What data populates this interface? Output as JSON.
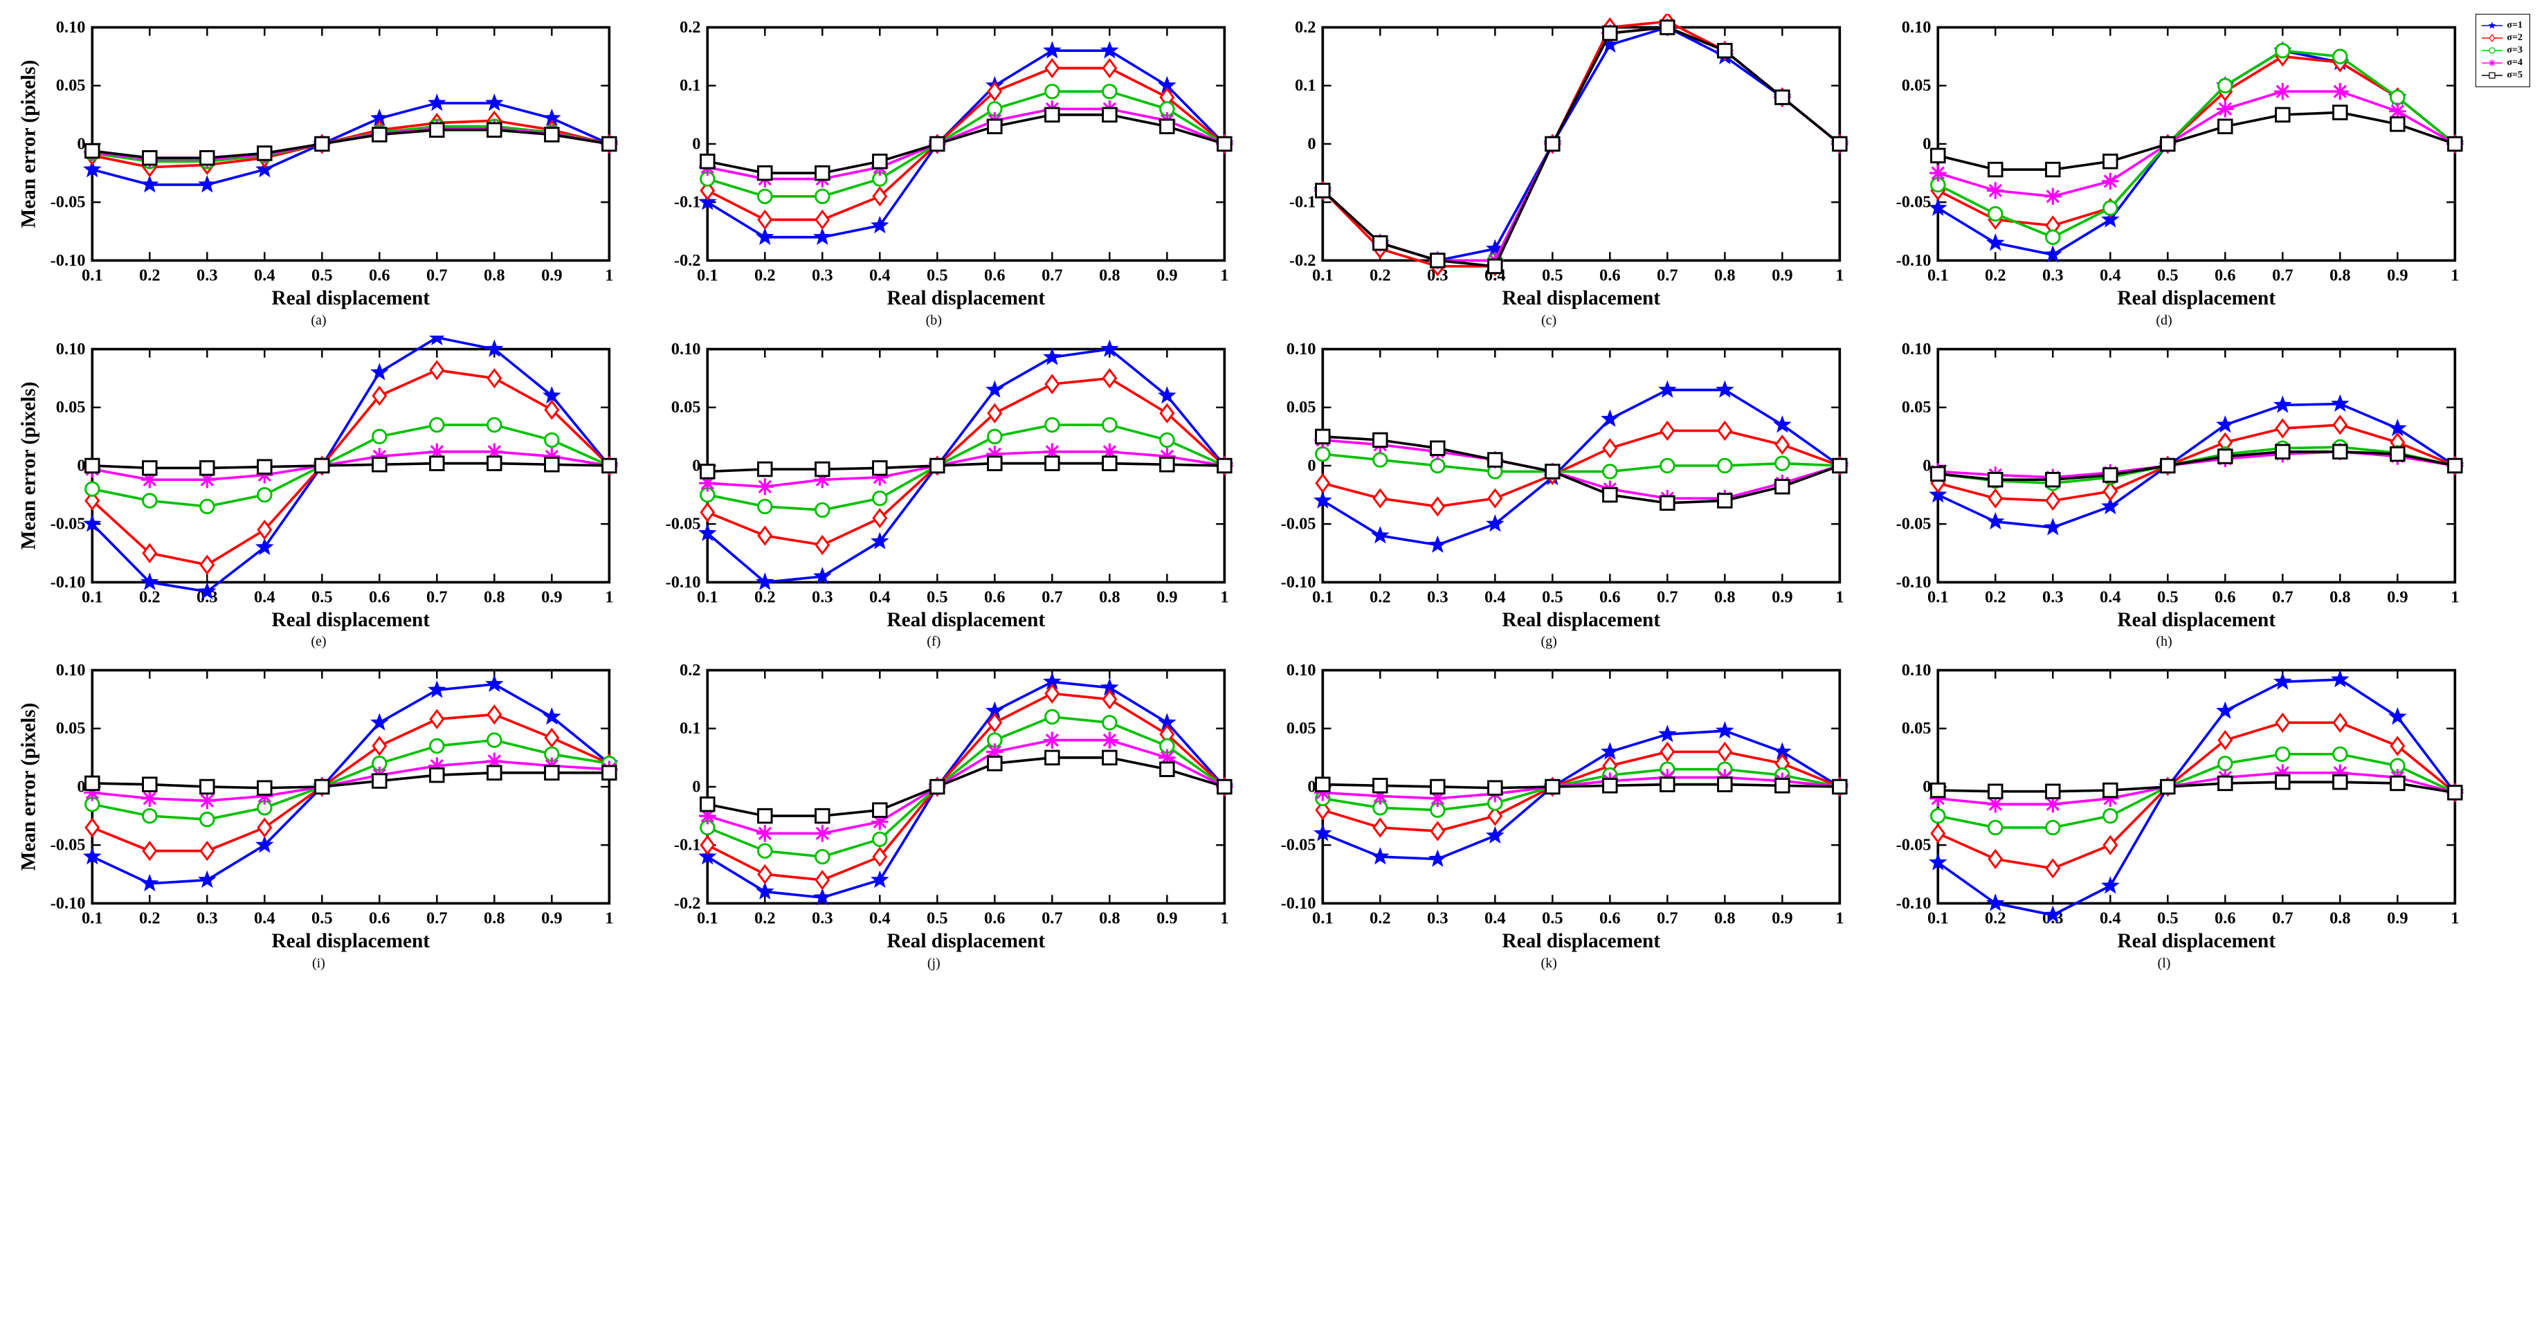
{
  "x_categories": [
    0.1,
    0.2,
    0.3,
    0.4,
    0.5,
    0.6,
    0.7,
    0.8,
    0.9,
    1.0
  ],
  "x_label": "Real displacement",
  "y_label": "Mean error (pixels)",
  "axis_color": "#000000",
  "background_color": "#ffffff",
  "axis_linewidth": 1.5,
  "tick_fontsize": 10,
  "label_fontsize": 12,
  "sublabel_fontsize": 20,
  "series_defs": {
    "s1": {
      "label": "σ=1",
      "color": "#0000ff",
      "marker": "pentagram",
      "ms": 5
    },
    "s2": {
      "label": "σ=2",
      "color": "#ff0000",
      "marker": "diamond",
      "ms": 5
    },
    "s3": {
      "label": "σ=3",
      "color": "#00c000",
      "marker": "circle",
      "ms": 5
    },
    "s4": {
      "label": "σ=4",
      "color": "#ff00ff",
      "marker": "asterisk",
      "ms": 5
    },
    "s5": {
      "label": "σ=5",
      "color": "#000000",
      "marker": "square",
      "ms": 5
    }
  },
  "legend_order": [
    "s1",
    "s2",
    "s3",
    "s4",
    "s5"
  ],
  "subplots": [
    {
      "id": "a",
      "ylim": [
        -0.1,
        0.1
      ],
      "ytick_step": 0.05,
      "series": {
        "s1": [
          -0.022,
          -0.035,
          -0.035,
          -0.022,
          0.0,
          0.022,
          0.035,
          0.035,
          0.022,
          0.0
        ],
        "s2": [
          -0.01,
          -0.02,
          -0.018,
          -0.012,
          0.0,
          0.012,
          0.018,
          0.02,
          0.012,
          0.0
        ],
        "s3": [
          -0.008,
          -0.015,
          -0.015,
          -0.01,
          0.0,
          0.01,
          0.015,
          0.015,
          0.01,
          0.0
        ],
        "s4": [
          -0.007,
          -0.013,
          -0.013,
          -0.009,
          0.0,
          0.009,
          0.013,
          0.013,
          0.009,
          0.0
        ],
        "s5": [
          -0.006,
          -0.012,
          -0.012,
          -0.008,
          0.0,
          0.008,
          0.012,
          0.012,
          0.008,
          0.0
        ]
      }
    },
    {
      "id": "b",
      "ylim": [
        -0.2,
        0.2
      ],
      "ytick_step": 0.1,
      "series": {
        "s1": [
          -0.1,
          -0.16,
          -0.16,
          -0.14,
          0.0,
          0.1,
          0.16,
          0.16,
          0.1,
          0.0
        ],
        "s2": [
          -0.08,
          -0.13,
          -0.13,
          -0.09,
          0.0,
          0.09,
          0.13,
          0.13,
          0.08,
          0.0
        ],
        "s3": [
          -0.06,
          -0.09,
          -0.09,
          -0.06,
          0.0,
          0.06,
          0.09,
          0.09,
          0.06,
          0.0
        ],
        "s4": [
          -0.04,
          -0.06,
          -0.06,
          -0.04,
          0.0,
          0.04,
          0.06,
          0.06,
          0.04,
          0.0
        ],
        "s5": [
          -0.03,
          -0.05,
          -0.05,
          -0.03,
          0.0,
          0.03,
          0.05,
          0.05,
          0.03,
          0.0
        ]
      }
    },
    {
      "id": "c",
      "ylim": [
        -0.2,
        0.2
      ],
      "ytick_step": 0.1,
      "series": {
        "s1": [
          -0.08,
          -0.17,
          -0.2,
          -0.18,
          0.0,
          0.17,
          0.2,
          0.15,
          0.08,
          0.0
        ],
        "s2": [
          -0.08,
          -0.18,
          -0.21,
          -0.21,
          0.0,
          0.2,
          0.21,
          0.16,
          0.08,
          0.0
        ],
        "s3": [
          -0.08,
          -0.17,
          -0.2,
          -0.2,
          0.0,
          0.19,
          0.2,
          0.16,
          0.08,
          0.0
        ],
        "s4": [
          -0.08,
          -0.17,
          -0.2,
          -0.2,
          0.0,
          0.19,
          0.2,
          0.16,
          0.08,
          0.0
        ],
        "s5": [
          -0.08,
          -0.17,
          -0.2,
          -0.21,
          0.0,
          0.19,
          0.2,
          0.16,
          0.08,
          0.0
        ]
      }
    },
    {
      "id": "d",
      "ylim": [
        -0.1,
        0.1
      ],
      "ytick_step": 0.05,
      "series": {
        "s1": [
          -0.055,
          -0.085,
          -0.095,
          -0.065,
          0.0,
          0.05,
          0.08,
          0.07,
          0.04,
          0.0
        ],
        "s2": [
          -0.04,
          -0.065,
          -0.07,
          -0.055,
          0.0,
          0.045,
          0.075,
          0.07,
          0.04,
          0.0
        ],
        "s3": [
          -0.035,
          -0.06,
          -0.08,
          -0.055,
          0.0,
          0.05,
          0.08,
          0.075,
          0.04,
          0.0
        ],
        "s4": [
          -0.025,
          -0.04,
          -0.045,
          -0.032,
          0.0,
          0.03,
          0.045,
          0.045,
          0.028,
          0.0
        ],
        "s5": [
          -0.01,
          -0.022,
          -0.022,
          -0.015,
          0.0,
          0.015,
          0.025,
          0.027,
          0.017,
          0.0
        ]
      }
    },
    {
      "id": "e",
      "ylim": [
        -0.1,
        0.1
      ],
      "ytick_step": 0.05,
      "series": {
        "s1": [
          -0.05,
          -0.1,
          -0.108,
          -0.07,
          0.0,
          0.08,
          0.11,
          0.1,
          0.06,
          0.0
        ],
        "s2": [
          -0.03,
          -0.075,
          -0.085,
          -0.055,
          0.0,
          0.06,
          0.082,
          0.075,
          0.048,
          0.0
        ],
        "s3": [
          -0.02,
          -0.03,
          -0.035,
          -0.025,
          0.0,
          0.025,
          0.035,
          0.035,
          0.022,
          0.0
        ],
        "s4": [
          -0.003,
          -0.012,
          -0.012,
          -0.008,
          0.0,
          0.008,
          0.012,
          0.012,
          0.008,
          0.0
        ],
        "s5": [
          0.0,
          -0.002,
          -0.002,
          -0.001,
          0.0,
          0.001,
          0.002,
          0.002,
          0.001,
          0.0
        ]
      }
    },
    {
      "id": "f",
      "ylim": [
        -0.1,
        0.1
      ],
      "ytick_step": 0.05,
      "series": {
        "s1": [
          -0.058,
          -0.1,
          -0.095,
          -0.065,
          0.0,
          0.065,
          0.093,
          0.1,
          0.06,
          0.0
        ],
        "s2": [
          -0.04,
          -0.06,
          -0.068,
          -0.045,
          0.0,
          0.045,
          0.07,
          0.075,
          0.045,
          0.0
        ],
        "s3": [
          -0.025,
          -0.035,
          -0.038,
          -0.028,
          0.0,
          0.025,
          0.035,
          0.035,
          0.022,
          0.0
        ],
        "s4": [
          -0.015,
          -0.018,
          -0.012,
          -0.01,
          0.0,
          0.01,
          0.012,
          0.012,
          0.008,
          0.0
        ],
        "s5": [
          -0.005,
          -0.003,
          -0.003,
          -0.002,
          0.0,
          0.002,
          0.002,
          0.002,
          0.001,
          0.0
        ]
      }
    },
    {
      "id": "g",
      "ylim": [
        -0.1,
        0.1
      ],
      "ytick_step": 0.05,
      "series": {
        "s1": [
          -0.03,
          -0.06,
          -0.068,
          -0.05,
          -0.01,
          0.04,
          0.065,
          0.065,
          0.035,
          0.0
        ],
        "s2": [
          -0.015,
          -0.028,
          -0.035,
          -0.028,
          -0.008,
          0.015,
          0.03,
          0.03,
          0.018,
          0.0
        ],
        "s3": [
          0.01,
          0.005,
          0.0,
          -0.005,
          -0.005,
          -0.005,
          0.0,
          0.0,
          0.002,
          0.0
        ],
        "s4": [
          0.022,
          0.018,
          0.012,
          0.005,
          -0.005,
          -0.02,
          -0.028,
          -0.028,
          -0.015,
          0.0
        ],
        "s5": [
          0.025,
          0.022,
          0.015,
          0.005,
          -0.005,
          -0.025,
          -0.032,
          -0.03,
          -0.018,
          0.0
        ]
      }
    },
    {
      "id": "h",
      "ylim": [
        -0.1,
        0.1
      ],
      "ytick_step": 0.05,
      "series": {
        "s1": [
          -0.025,
          -0.048,
          -0.053,
          -0.035,
          0.0,
          0.035,
          0.052,
          0.053,
          0.032,
          0.0
        ],
        "s2": [
          -0.015,
          -0.028,
          -0.03,
          -0.022,
          0.0,
          0.02,
          0.032,
          0.035,
          0.02,
          0.0
        ],
        "s3": [
          -0.007,
          -0.013,
          -0.015,
          -0.01,
          0.0,
          0.01,
          0.015,
          0.016,
          0.011,
          0.0
        ],
        "s4": [
          -0.005,
          -0.008,
          -0.01,
          -0.006,
          0.0,
          0.006,
          0.01,
          0.012,
          0.008,
          0.0
        ],
        "s5": [
          -0.007,
          -0.012,
          -0.012,
          -0.008,
          0.0,
          0.008,
          0.012,
          0.012,
          0.01,
          0.0
        ]
      }
    },
    {
      "id": "i",
      "ylim": [
        -0.1,
        0.1
      ],
      "ytick_step": 0.05,
      "series": {
        "s1": [
          -0.06,
          -0.083,
          -0.08,
          -0.05,
          0.0,
          0.055,
          0.083,
          0.088,
          0.06,
          0.02
        ],
        "s2": [
          -0.035,
          -0.055,
          -0.055,
          -0.035,
          0.0,
          0.035,
          0.058,
          0.062,
          0.042,
          0.02
        ],
        "s3": [
          -0.015,
          -0.025,
          -0.028,
          -0.018,
          0.0,
          0.02,
          0.035,
          0.04,
          0.028,
          0.02
        ],
        "s4": [
          -0.005,
          -0.01,
          -0.012,
          -0.008,
          0.0,
          0.01,
          0.018,
          0.022,
          0.018,
          0.015
        ],
        "s5": [
          0.003,
          0.002,
          0.0,
          -0.001,
          0.0,
          0.005,
          0.01,
          0.012,
          0.012,
          0.012
        ]
      }
    },
    {
      "id": "j",
      "ylim": [
        -0.2,
        0.2
      ],
      "ytick_step": 0.1,
      "series": {
        "s1": [
          -0.12,
          -0.18,
          -0.19,
          -0.16,
          0.0,
          0.13,
          0.18,
          0.17,
          0.11,
          0.0
        ],
        "s2": [
          -0.1,
          -0.15,
          -0.16,
          -0.12,
          0.0,
          0.11,
          0.16,
          0.15,
          0.09,
          0.0
        ],
        "s3": [
          -0.07,
          -0.11,
          -0.12,
          -0.09,
          0.0,
          0.08,
          0.12,
          0.11,
          0.07,
          0.0
        ],
        "s4": [
          -0.05,
          -0.08,
          -0.08,
          -0.06,
          0.0,
          0.06,
          0.08,
          0.08,
          0.05,
          0.0
        ],
        "s5": [
          -0.03,
          -0.05,
          -0.05,
          -0.04,
          0.0,
          0.04,
          0.05,
          0.05,
          0.03,
          0.0
        ]
      }
    },
    {
      "id": "k",
      "ylim": [
        -0.1,
        0.1
      ],
      "ytick_step": 0.05,
      "series": {
        "s1": [
          -0.04,
          -0.06,
          -0.062,
          -0.042,
          0.0,
          0.03,
          0.045,
          0.048,
          0.03,
          0.0
        ],
        "s2": [
          -0.02,
          -0.035,
          -0.038,
          -0.025,
          0.0,
          0.018,
          0.03,
          0.03,
          0.02,
          0.0
        ],
        "s3": [
          -0.01,
          -0.018,
          -0.02,
          -0.014,
          0.0,
          0.01,
          0.015,
          0.015,
          0.01,
          0.0
        ],
        "s4": [
          -0.005,
          -0.008,
          -0.01,
          -0.006,
          0.0,
          0.005,
          0.008,
          0.008,
          0.005,
          0.0
        ],
        "s5": [
          0.002,
          0.001,
          0.0,
          -0.001,
          0.0,
          0.001,
          0.002,
          0.002,
          0.001,
          0.0
        ]
      }
    },
    {
      "id": "l",
      "ylim": [
        -0.1,
        0.1
      ],
      "ytick_step": 0.05,
      "series": {
        "s1": [
          -0.065,
          -0.1,
          -0.11,
          -0.085,
          0.0,
          0.065,
          0.09,
          0.092,
          0.06,
          -0.005
        ],
        "s2": [
          -0.04,
          -0.062,
          -0.07,
          -0.05,
          0.0,
          0.04,
          0.055,
          0.055,
          0.035,
          -0.005
        ],
        "s3": [
          -0.025,
          -0.035,
          -0.035,
          -0.025,
          0.0,
          0.02,
          0.028,
          0.028,
          0.018,
          -0.005
        ],
        "s4": [
          -0.01,
          -0.015,
          -0.015,
          -0.01,
          0.0,
          0.008,
          0.012,
          0.012,
          0.008,
          -0.005
        ],
        "s5": [
          -0.003,
          -0.004,
          -0.004,
          -0.003,
          0.0,
          0.003,
          0.004,
          0.004,
          0.003,
          -0.005
        ]
      }
    }
  ]
}
